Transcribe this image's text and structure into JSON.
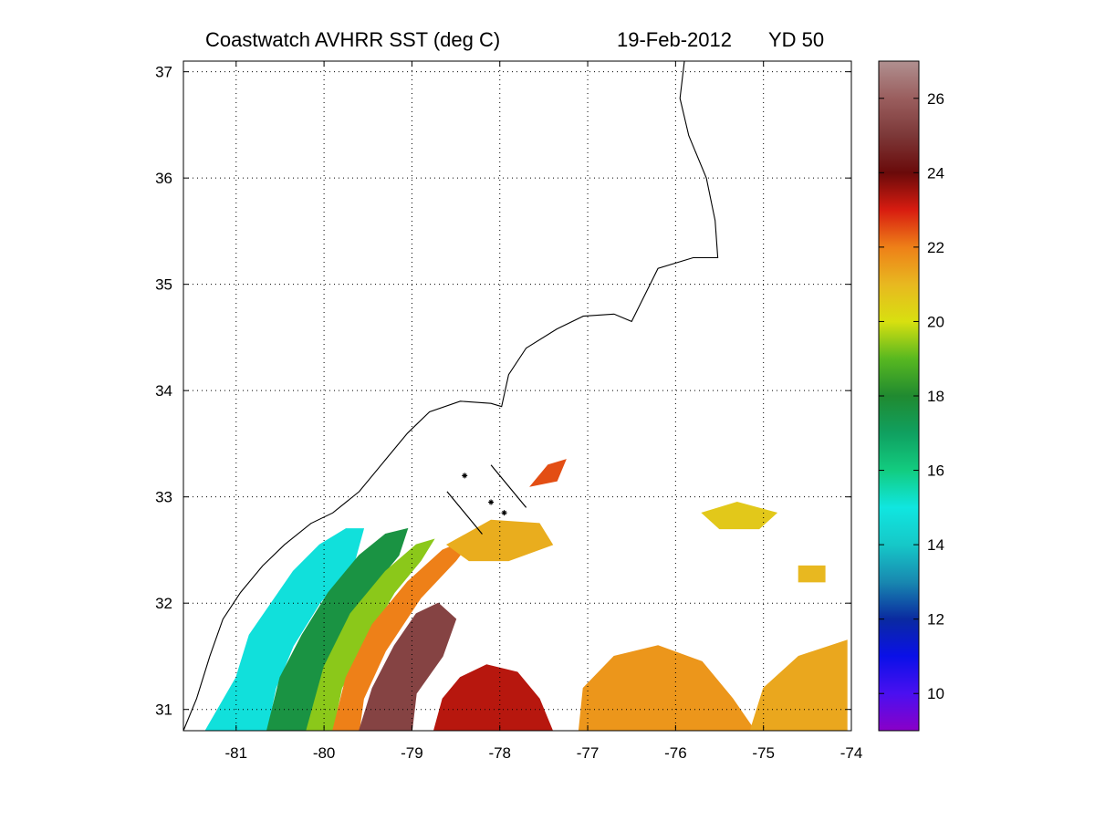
{
  "title": {
    "product": "Coastwatch   AVHRR   SST  (deg C)",
    "date": "19-Feb-2012",
    "yearday": "YD 50"
  },
  "map": {
    "lon_range": [
      -81.6,
      -74
    ],
    "lat_range": [
      30.8,
      37.1
    ],
    "x_ticks": [
      -81,
      -80,
      -79,
      -78,
      -77,
      -76,
      -75,
      -74
    ],
    "y_ticks": [
      31,
      32,
      33,
      34,
      35,
      36,
      37
    ],
    "x_tick_labels": [
      "-81",
      "-80",
      "-79",
      "-78",
      "-77",
      "-76",
      "-75",
      "-74"
    ],
    "y_tick_labels": [
      "31",
      "32",
      "33",
      "34",
      "35",
      "36",
      "37"
    ],
    "grid": "dotted",
    "coastline_color": "#000000",
    "track_lines": [
      {
        "start": [
          -78.6,
          33.05
        ],
        "end": [
          -78.2,
          32.65
        ]
      },
      {
        "start": [
          -78.1,
          33.3
        ],
        "end": [
          -77.7,
          32.9
        ]
      }
    ],
    "track_markers": [
      [
        -78.4,
        33.2
      ],
      [
        -78.1,
        32.95
      ],
      [
        -77.95,
        32.85
      ]
    ]
  },
  "colorbar": {
    "range": [
      9,
      27
    ],
    "ticks": [
      10,
      12,
      14,
      16,
      18,
      20,
      22,
      24,
      26
    ],
    "tick_labels": [
      "10",
      "12",
      "14",
      "16",
      "18",
      "20",
      "22",
      "24",
      "26"
    ],
    "stops": [
      {
        "value": 9,
        "color": "#8a00c8"
      },
      {
        "value": 10,
        "color": "#4a10f0"
      },
      {
        "value": 11,
        "color": "#0a10e8"
      },
      {
        "value": 12,
        "color": "#0a2aa0"
      },
      {
        "value": 13,
        "color": "#1888b0"
      },
      {
        "value": 14,
        "color": "#16c8c8"
      },
      {
        "value": 15,
        "color": "#10e6e0"
      },
      {
        "value": 16,
        "color": "#12cc80"
      },
      {
        "value": 17,
        "color": "#10a060"
      },
      {
        "value": 18,
        "color": "#208a30"
      },
      {
        "value": 19,
        "color": "#58b820"
      },
      {
        "value": 20,
        "color": "#d8e010"
      },
      {
        "value": 21,
        "color": "#e8b820"
      },
      {
        "value": 22,
        "color": "#ee8018"
      },
      {
        "value": 23,
        "color": "#d81c10"
      },
      {
        "value": 24,
        "color": "#6a0a0a"
      },
      {
        "value": 25,
        "color": "#7c3838"
      },
      {
        "value": 26,
        "color": "#9a5e5e"
      },
      {
        "value": 27,
        "color": "#b09090"
      }
    ]
  },
  "sst_regions": [
    {
      "name": "cold-shelf-band",
      "temp": 14.8,
      "lon_lat": [
        [
          -81.35,
          30.8
        ],
        [
          -81.0,
          31.3
        ],
        [
          -80.85,
          31.7
        ],
        [
          -80.6,
          32.0
        ],
        [
          -80.35,
          32.3
        ],
        [
          -80.05,
          32.55
        ],
        [
          -79.75,
          32.7
        ],
        [
          -79.55,
          32.7
        ],
        [
          -79.65,
          32.4
        ],
        [
          -80.05,
          32.0
        ],
        [
          -80.35,
          31.6
        ],
        [
          -80.55,
          31.2
        ],
        [
          -80.65,
          30.8
        ]
      ]
    },
    {
      "name": "mid-shelf-band",
      "temp": 17.6,
      "lon_lat": [
        [
          -80.65,
          30.8
        ],
        [
          -80.5,
          31.3
        ],
        [
          -80.25,
          31.7
        ],
        [
          -79.95,
          32.1
        ],
        [
          -79.6,
          32.45
        ],
        [
          -79.3,
          32.65
        ],
        [
          -79.05,
          32.7
        ],
        [
          -79.15,
          32.45
        ],
        [
          -79.5,
          32.1
        ],
        [
          -79.85,
          31.6
        ],
        [
          -80.05,
          31.2
        ],
        [
          -80.2,
          30.8
        ]
      ]
    },
    {
      "name": "shelf-edge-green",
      "temp": 19.4,
      "lon_lat": [
        [
          -80.2,
          30.8
        ],
        [
          -80.0,
          31.4
        ],
        [
          -79.7,
          31.9
        ],
        [
          -79.3,
          32.3
        ],
        [
          -78.95,
          32.55
        ],
        [
          -78.75,
          32.6
        ],
        [
          -78.9,
          32.4
        ],
        [
          -79.2,
          32.1
        ],
        [
          -79.55,
          31.6
        ],
        [
          -79.8,
          31.2
        ],
        [
          -79.9,
          30.8
        ]
      ]
    },
    {
      "name": "front-orange",
      "temp": 22.0,
      "lon_lat": [
        [
          -79.9,
          30.8
        ],
        [
          -79.75,
          31.3
        ],
        [
          -79.45,
          31.8
        ],
        [
          -79.05,
          32.2
        ],
        [
          -78.65,
          32.5
        ],
        [
          -78.3,
          32.62
        ],
        [
          -78.5,
          32.4
        ],
        [
          -78.9,
          32.05
        ],
        [
          -79.3,
          31.55
        ],
        [
          -79.55,
          31.1
        ],
        [
          -79.6,
          30.8
        ]
      ]
    },
    {
      "name": "gulf-stream-core",
      "temp": 25.3,
      "lon_lat": [
        [
          -79.6,
          30.8
        ],
        [
          -79.45,
          31.2
        ],
        [
          -79.2,
          31.6
        ],
        [
          -78.95,
          31.9
        ],
        [
          -78.7,
          32.0
        ],
        [
          -78.5,
          31.85
        ],
        [
          -78.65,
          31.5
        ],
        [
          -78.95,
          31.15
        ],
        [
          -79.0,
          30.8
        ]
      ]
    },
    {
      "name": "warm-red-patch",
      "temp": 23.3,
      "lon_lat": [
        [
          -78.75,
          30.8
        ],
        [
          -78.65,
          31.1
        ],
        [
          -78.45,
          31.3
        ],
        [
          -78.15,
          31.42
        ],
        [
          -77.8,
          31.35
        ],
        [
          -77.55,
          31.1
        ],
        [
          -77.4,
          30.8
        ]
      ]
    },
    {
      "name": "offshore-warm-orange",
      "temp": 21.6,
      "lon_lat": [
        [
          -77.1,
          30.8
        ],
        [
          -77.05,
          31.2
        ],
        [
          -76.7,
          31.5
        ],
        [
          -76.2,
          31.6
        ],
        [
          -75.7,
          31.45
        ],
        [
          -75.35,
          31.1
        ],
        [
          -75.1,
          30.8
        ]
      ]
    },
    {
      "name": "offshore-east-orange",
      "temp": 21.3,
      "lon_lat": [
        [
          -75.15,
          30.8
        ],
        [
          -75.0,
          31.2
        ],
        [
          -74.6,
          31.5
        ],
        [
          -74.05,
          31.65
        ],
        [
          -74.05,
          30.8
        ]
      ]
    },
    {
      "name": "nearshore-plume",
      "temp": 21.2,
      "lon_lat": [
        [
          -78.6,
          32.55
        ],
        [
          -78.1,
          32.78
        ],
        [
          -77.55,
          32.75
        ],
        [
          -77.4,
          32.55
        ],
        [
          -77.9,
          32.4
        ],
        [
          -78.35,
          32.4
        ]
      ]
    },
    {
      "name": "north-eddy-red",
      "temp": 22.5,
      "lon_lat": [
        [
          -77.65,
          33.1
        ],
        [
          -77.45,
          33.3
        ],
        [
          -77.25,
          33.35
        ],
        [
          -77.35,
          33.15
        ]
      ]
    },
    {
      "name": "east-yellow-patch",
      "temp": 20.6,
      "lon_lat": [
        [
          -75.7,
          32.85
        ],
        [
          -75.3,
          32.95
        ],
        [
          -74.85,
          32.85
        ],
        [
          -75.05,
          32.7
        ],
        [
          -75.5,
          32.7
        ]
      ]
    },
    {
      "name": "east-small-patch",
      "temp": 21.0,
      "lon_lat": [
        [
          -74.6,
          32.35
        ],
        [
          -74.3,
          32.35
        ],
        [
          -74.3,
          32.2
        ],
        [
          -74.6,
          32.2
        ]
      ]
    }
  ],
  "coastline": [
    [
      -81.6,
      30.8
    ],
    [
      -81.45,
      31.1
    ],
    [
      -81.3,
      31.5
    ],
    [
      -81.15,
      31.85
    ],
    [
      -80.95,
      32.1
    ],
    [
      -80.7,
      32.35
    ],
    [
      -80.45,
      32.55
    ],
    [
      -80.15,
      32.75
    ],
    [
      -79.9,
      32.85
    ],
    [
      -79.6,
      33.05
    ],
    [
      -79.3,
      33.35
    ],
    [
      -79.05,
      33.6
    ],
    [
      -78.8,
      33.8
    ],
    [
      -78.45,
      33.9
    ],
    [
      -78.1,
      33.88
    ],
    [
      -77.98,
      33.85
    ],
    [
      -77.9,
      34.15
    ],
    [
      -77.7,
      34.4
    ],
    [
      -77.35,
      34.58
    ],
    [
      -77.05,
      34.7
    ],
    [
      -76.7,
      34.72
    ],
    [
      -76.5,
      34.65
    ],
    [
      -76.35,
      34.9
    ],
    [
      -76.2,
      35.15
    ],
    [
      -75.8,
      35.25
    ],
    [
      -75.52,
      35.25
    ],
    [
      -75.55,
      35.6
    ],
    [
      -75.65,
      36.0
    ],
    [
      -75.85,
      36.4
    ],
    [
      -75.95,
      36.75
    ],
    [
      -75.9,
      37.1
    ]
  ]
}
